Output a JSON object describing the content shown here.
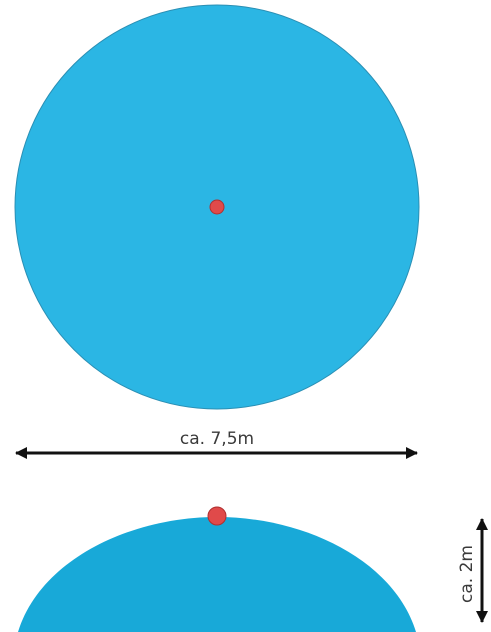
{
  "diagram": {
    "width_label": "ca. 7,5m",
    "height_label": "ca. 2m"
  },
  "colors": {
    "disc_fill": "#2BB6E4",
    "disc_stroke": "#2A8FB4",
    "dome_fill": "#18A9D8",
    "point_fill": "#E04A4A",
    "point_stroke": "#B03030",
    "arrow": "#111111",
    "label": "#3a3a3a"
  }
}
